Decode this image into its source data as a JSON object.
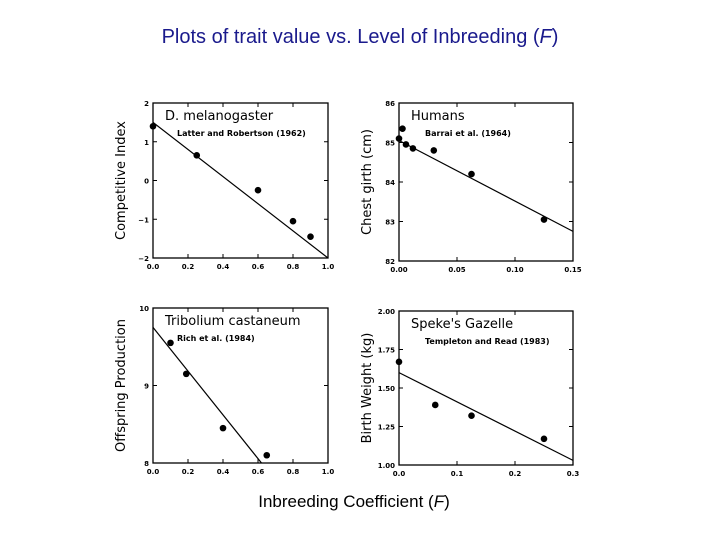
{
  "page": {
    "title": "Plots of trait value vs. Level of Inbreeding (",
    "title_f": "F",
    "title_end": ")",
    "bottom_label": "Inbreeding Coefficient (",
    "bottom_f": "F",
    "bottom_end": ")",
    "title_color": "#1a1a8c"
  },
  "chart_data": [
    {
      "type": "scatter",
      "title": "D. melanogaster",
      "citation": "Latter and Robertson (1962)",
      "xlabel": "",
      "ylabel": "Competitive Index",
      "xlim": [
        0,
        1.0
      ],
      "ylim": [
        -2,
        2
      ],
      "xticks": [
        0,
        0.2,
        0.4,
        0.6,
        0.8,
        1.0
      ],
      "xtick_labels": [
        "0.0",
        "0.2",
        "0.4",
        "0.6",
        "0.8",
        "1.0"
      ],
      "yticks": [
        -2,
        -1,
        0,
        1,
        2
      ],
      "ytick_labels": [
        "−2",
        "−1",
        "0",
        "1",
        "2"
      ],
      "points": [
        [
          0.0,
          1.4
        ],
        [
          0.25,
          0.65
        ],
        [
          0.6,
          -0.25
        ],
        [
          0.8,
          -1.05
        ],
        [
          0.9,
          -1.45
        ]
      ],
      "trend": [
        [
          0.0,
          1.5
        ],
        [
          1.0,
          -2.0
        ]
      ]
    },
    {
      "type": "scatter",
      "title": "Humans",
      "citation": "Barrai et al. (1964)",
      "xlabel": "",
      "ylabel": "Chest girth (cm)",
      "xlim": [
        0,
        0.15
      ],
      "ylim": [
        82,
        86
      ],
      "xticks": [
        0,
        0.05,
        0.1,
        0.15
      ],
      "xtick_labels": [
        "0.00",
        "0.05",
        "0.10",
        "0.15"
      ],
      "yticks": [
        82,
        83,
        84,
        85,
        86
      ],
      "ytick_labels": [
        "82",
        "83",
        "84",
        "85",
        "86"
      ],
      "points": [
        [
          0.0,
          85.1
        ],
        [
          0.003,
          85.35
        ],
        [
          0.006,
          84.95
        ],
        [
          0.012,
          84.85
        ],
        [
          0.03,
          84.8
        ],
        [
          0.0625,
          84.2
        ],
        [
          0.125,
          83.05
        ]
      ],
      "trend": [
        [
          0.0,
          85.05
        ],
        [
          0.15,
          82.75
        ]
      ]
    },
    {
      "type": "scatter",
      "title": "Tribolium castaneum",
      "citation": "Rich et al. (1984)",
      "xlabel": "",
      "ylabel": "Offspring Production",
      "xlim": [
        0,
        1.0
      ],
      "ylim": [
        8,
        10
      ],
      "xticks": [
        0,
        0.2,
        0.4,
        0.6,
        0.8,
        1.0
      ],
      "xtick_labels": [
        "0.0",
        "0.2",
        "0.4",
        "0.6",
        "0.8",
        "1.0"
      ],
      "yticks": [
        8,
        9,
        10
      ],
      "ytick_labels": [
        "8",
        "9",
        "10"
      ],
      "points": [
        [
          0.1,
          9.55
        ],
        [
          0.19,
          9.15
        ],
        [
          0.4,
          8.45
        ],
        [
          0.65,
          8.1
        ]
      ],
      "trend": [
        [
          0.0,
          9.75
        ],
        [
          0.62,
          8.0
        ]
      ]
    },
    {
      "type": "scatter",
      "title": "Speke's Gazelle",
      "citation": "Templeton and Read (1983)",
      "xlabel": "",
      "ylabel": "Birth Weight (kg)",
      "xlim": [
        0,
        0.3
      ],
      "ylim": [
        1.0,
        2.0
      ],
      "xticks": [
        0,
        0.1,
        0.2,
        0.3
      ],
      "xtick_labels": [
        "0.0",
        "0.1",
        "0.2",
        "0.3"
      ],
      "yticks": [
        1.0,
        1.25,
        1.5,
        1.75,
        2.0
      ],
      "ytick_labels": [
        "1.00",
        "1.25",
        "1.50",
        "1.75",
        "2.00"
      ],
      "points": [
        [
          0.0,
          1.67
        ],
        [
          0.0625,
          1.39
        ],
        [
          0.125,
          1.32
        ],
        [
          0.25,
          1.17
        ]
      ],
      "trend": [
        [
          0.0,
          1.6
        ],
        [
          0.3,
          1.03
        ]
      ]
    }
  ]
}
